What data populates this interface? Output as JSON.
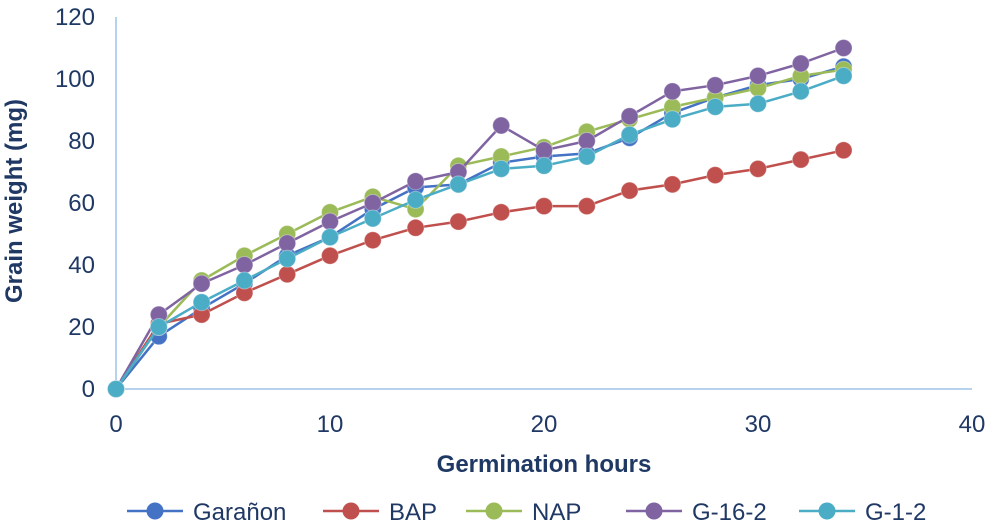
{
  "chart_data": {
    "type": "line",
    "title": "",
    "xlabel": "Germination hours",
    "ylabel": "Grain weight (mg)",
    "xlim": [
      0,
      40
    ],
    "ylim": [
      0,
      120
    ],
    "xticks": [
      0,
      10,
      20,
      30,
      40
    ],
    "yticks": [
      0,
      20,
      40,
      60,
      80,
      100,
      120
    ],
    "grid": false,
    "legend_position": "bottom",
    "x": [
      0,
      2,
      4,
      6,
      8,
      10,
      12,
      14,
      16,
      18,
      20,
      22,
      24,
      26,
      28,
      30,
      32,
      34
    ],
    "series": [
      {
        "name": "Garañon",
        "color": "#4472c4",
        "values": [
          0,
          17,
          26,
          34,
          43,
          49,
          58,
          65,
          66,
          73,
          75,
          76,
          81,
          89,
          94,
          98,
          100,
          104
        ]
      },
      {
        "name": "BAP",
        "color": "#c0504d",
        "values": [
          0,
          21,
          24,
          31,
          37,
          43,
          48,
          52,
          54,
          57,
          59,
          59,
          64,
          66,
          69,
          71,
          74,
          77
        ]
      },
      {
        "name": "NAP",
        "color": "#9bbb59",
        "values": [
          0,
          20,
          35,
          43,
          50,
          57,
          62,
          58,
          72,
          75,
          78,
          83,
          87,
          91,
          94,
          97,
          101,
          103
        ]
      },
      {
        "name": "G-16-2",
        "color": "#8064a2",
        "values": [
          0,
          24,
          34,
          40,
          47,
          54,
          60,
          67,
          70,
          85,
          77,
          80,
          88,
          96,
          98,
          101,
          105,
          110
        ]
      },
      {
        "name": "G-1-2",
        "color": "#4bacc6",
        "values": [
          0,
          20,
          28,
          35,
          42,
          49,
          55,
          61,
          66,
          71,
          72,
          75,
          82,
          87,
          91,
          92,
          96,
          101
        ]
      }
    ]
  }
}
